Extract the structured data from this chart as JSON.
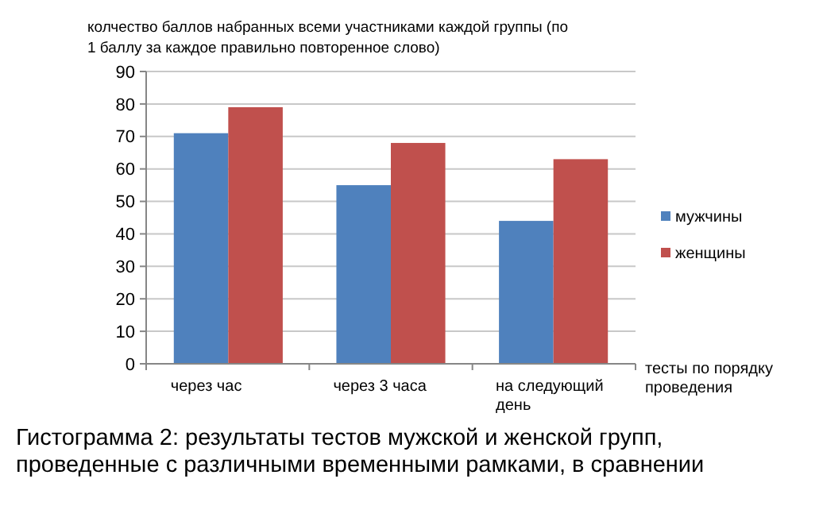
{
  "chart_data": {
    "type": "bar",
    "ylabel": "колчество баллов набранных всеми участниками каждой группы (по 1 баллу за каждое правильно повторенное слово)",
    "xlabel": "тесты по порядку проведения",
    "categories": [
      "через час",
      "через 3 часа",
      "на следующий день"
    ],
    "series": [
      {
        "name": "мужчины",
        "color": "#4f81bd",
        "values": [
          71,
          55,
          44
        ]
      },
      {
        "name": "женщины",
        "color": "#c0504d",
        "values": [
          79,
          68,
          63
        ]
      }
    ],
    "ylim": [
      0,
      90
    ],
    "yticks": [
      0,
      10,
      20,
      30,
      40,
      50,
      60,
      70,
      80,
      90
    ],
    "grid": "y",
    "legend": "right",
    "annotations": [
      "Гистограмма 2: результаты тестов мужской и женской групп, проведенные с различными временными рамками, в сравнении"
    ]
  }
}
